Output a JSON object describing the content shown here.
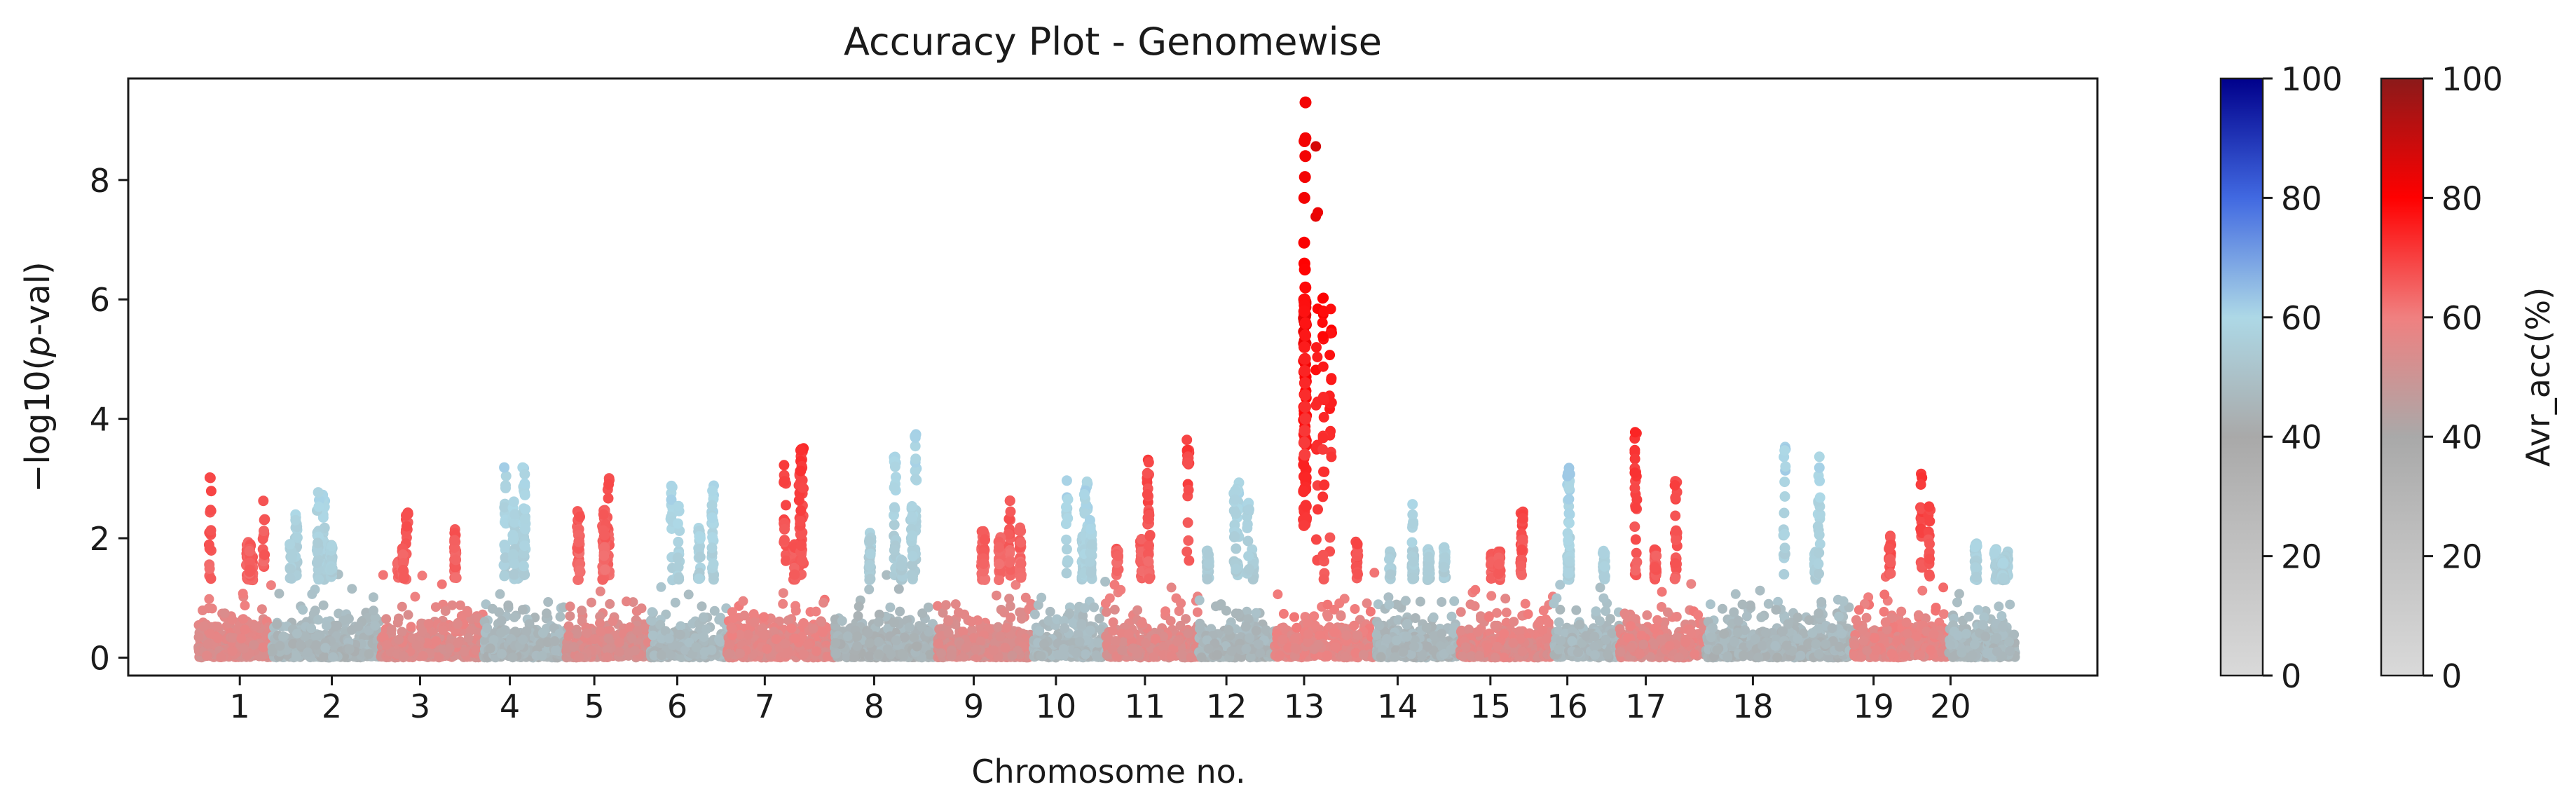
{
  "chart_data": {
    "type": "scatter",
    "title": "Accuracy Plot - Genomewise",
    "xlabel": "Chromosome no.",
    "ylabel_prefix": "−log10(",
    "ylabel_italic": "p",
    "ylabel_suffix": "-val)",
    "ylim": [
      -0.3,
      9.7
    ],
    "yticks": [
      "0",
      "2",
      "4",
      "6",
      "8"
    ],
    "ytick_values": [
      0,
      2,
      4,
      6,
      8
    ],
    "grid": false,
    "chromosomes": [
      {
        "label": "1",
        "start": 0,
        "end": 98,
        "tick": 55,
        "base_acc": 54,
        "peak_max": 3.1
      },
      {
        "label": "2",
        "start": 98,
        "end": 242,
        "tick": 177,
        "base_acc": 45,
        "peak_max": 2.8
      },
      {
        "label": "3",
        "start": 242,
        "end": 378,
        "tick": 294,
        "base_acc": 54,
        "peak_max": 2.5
      },
      {
        "label": "4",
        "start": 378,
        "end": 488,
        "tick": 413,
        "base_acc": 45,
        "peak_max": 3.4
      },
      {
        "label": "5",
        "start": 488,
        "end": 600,
        "tick": 525,
        "base_acc": 53,
        "peak_max": 3.05
      },
      {
        "label": "6",
        "start": 600,
        "end": 701,
        "tick": 635,
        "base_acc": 46,
        "peak_max": 2.9
      },
      {
        "label": "7",
        "start": 701,
        "end": 843,
        "tick": 751,
        "base_acc": 55,
        "peak_max": 3.8
      },
      {
        "label": "8",
        "start": 843,
        "end": 980,
        "tick": 896,
        "base_acc": 44,
        "peak_max": 3.85
      },
      {
        "label": "9",
        "start": 980,
        "end": 1107,
        "tick": 1028,
        "base_acc": 53,
        "peak_max": 2.7
      },
      {
        "label": "10",
        "start": 1107,
        "end": 1203,
        "tick": 1137,
        "base_acc": 46,
        "peak_max": 3.0
      },
      {
        "label": "11",
        "start": 1203,
        "end": 1326,
        "tick": 1255,
        "base_acc": 54,
        "peak_max": 3.65
      },
      {
        "label": "12",
        "start": 1326,
        "end": 1427,
        "tick": 1363,
        "base_acc": 45,
        "peak_max": 2.95
      },
      {
        "label": "13",
        "start": 1427,
        "end": 1561,
        "tick": 1466,
        "base_acc": 56,
        "peak_max": 9.3
      },
      {
        "label": "14",
        "start": 1561,
        "end": 1673,
        "tick": 1590,
        "base_acc": 45,
        "peak_max": 2.6
      },
      {
        "label": "15",
        "start": 1673,
        "end": 1797,
        "tick": 1713,
        "base_acc": 55,
        "peak_max": 2.45
      },
      {
        "label": "16",
        "start": 1797,
        "end": 1884,
        "tick": 1815,
        "base_acc": 46,
        "peak_max": 3.5
      },
      {
        "label": "17",
        "start": 1884,
        "end": 1999,
        "tick": 1919,
        "base_acc": 55,
        "peak_max": 3.85
      },
      {
        "label": "18",
        "start": 1999,
        "end": 2195,
        "tick": 2061,
        "base_acc": 45,
        "peak_max": 3.6
      },
      {
        "label": "19",
        "start": 2195,
        "end": 2321,
        "tick": 2221,
        "base_acc": 56,
        "peak_max": 3.1
      },
      {
        "label": "20",
        "start": 2321,
        "end": 2409,
        "tick": 2323,
        "base_acc": 46,
        "peak_max": 2.0
      }
    ],
    "peak": {
      "chromosome": "13",
      "max_neglog10p": 9.3,
      "top_values": [
        9.3,
        8.7,
        8.65,
        8.4,
        8.05,
        7.7,
        6.95,
        6.6,
        6.5,
        6.2,
        6.0,
        5.9,
        5.8,
        5.6,
        5.4,
        5.2,
        5.0,
        4.8,
        4.6,
        4.4,
        4.2,
        4.0,
        3.8,
        3.6,
        3.4
      ]
    },
    "colorbars": [
      {
        "name": "blue",
        "range": [
          0,
          100
        ],
        "ticks": [
          "0",
          "20",
          "40",
          "60",
          "80",
          "100"
        ],
        "stops": [
          "#d9d9d9",
          "#c2c2c2",
          "#a9a9a9",
          "#add8e6",
          "#4169e1",
          "#00008b"
        ],
        "label": ""
      },
      {
        "name": "red",
        "range": [
          0,
          100
        ],
        "ticks": [
          "0",
          "20",
          "40",
          "60",
          "80",
          "100"
        ],
        "stops": [
          "#d9d9d9",
          "#c2c2c2",
          "#a9a9a9",
          "#f08080",
          "#ff0000",
          "#8b1a1a"
        ],
        "label": "Avr_acc(%)"
      }
    ]
  }
}
